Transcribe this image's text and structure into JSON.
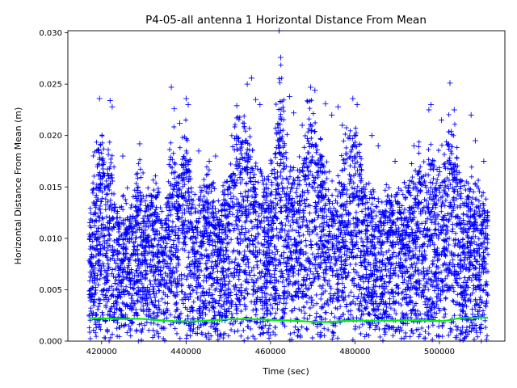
{
  "chart_data": {
    "type": "scatter",
    "title": "P4-05-all antenna 1 Horizontal Distance From Mean",
    "xlabel": "Time (sec)",
    "ylabel": "Horizontal Distance From Mean (m)",
    "xlim": [
      412000,
      515500
    ],
    "ylim": [
      0,
      0.0302
    ],
    "xticks": [
      {
        "value": 420000,
        "label": "420000"
      },
      {
        "value": 440000,
        "label": "440000"
      },
      {
        "value": 460000,
        "label": "460000"
      },
      {
        "value": 480000,
        "label": "480000"
      },
      {
        "value": 500000,
        "label": "500000"
      }
    ],
    "yticks": [
      {
        "value": 0,
        "label": "0.000"
      },
      {
        "value": 0.005,
        "label": "0.005"
      },
      {
        "value": 0.01,
        "label": "0.010"
      },
      {
        "value": 0.015,
        "label": "0.015"
      },
      {
        "value": 0.02,
        "label": "0.020"
      },
      {
        "value": 0.025,
        "label": "0.025"
      },
      {
        "value": 0.03,
        "label": "0.030"
      }
    ],
    "grid": false,
    "legend": "none",
    "x_range": [
      417000,
      511500
    ],
    "series": [
      {
        "marker": "+",
        "color": "#0000ff",
        "envelope": [
          [
            417000,
            0.0115
          ],
          [
            418000,
            0.0168
          ],
          [
            419000,
            0.0175
          ],
          [
            420000,
            0.0198
          ],
          [
            421000,
            0.0165
          ],
          [
            422000,
            0.0185
          ],
          [
            423000,
            0.0145
          ],
          [
            424000,
            0.0122
          ],
          [
            425000,
            0.0128
          ],
          [
            426000,
            0.0138
          ],
          [
            427000,
            0.0125
          ],
          [
            428000,
            0.0152
          ],
          [
            429000,
            0.0165
          ],
          [
            430000,
            0.014
          ],
          [
            431000,
            0.0135
          ],
          [
            432000,
            0.0145
          ],
          [
            433000,
            0.015
          ],
          [
            434000,
            0.013
          ],
          [
            435000,
            0.012
          ],
          [
            436000,
            0.0175
          ],
          [
            437000,
            0.0195
          ],
          [
            438000,
            0.015
          ],
          [
            439000,
            0.0182
          ],
          [
            440000,
            0.02
          ],
          [
            441000,
            0.0155
          ],
          [
            442000,
            0.0128
          ],
          [
            443000,
            0.014
          ],
          [
            444000,
            0.0135
          ],
          [
            445000,
            0.0155
          ],
          [
            446000,
            0.015
          ],
          [
            447000,
            0.013
          ],
          [
            448000,
            0.012
          ],
          [
            449000,
            0.0138
          ],
          [
            450000,
            0.016
          ],
          [
            451000,
            0.0185
          ],
          [
            452000,
            0.0205
          ],
          [
            453000,
            0.0215
          ],
          [
            454000,
            0.0222
          ],
          [
            455000,
            0.0195
          ],
          [
            456000,
            0.0165
          ],
          [
            457000,
            0.016
          ],
          [
            458000,
            0.0155
          ],
          [
            459000,
            0.015
          ],
          [
            460000,
            0.0165
          ],
          [
            461000,
            0.0195
          ],
          [
            462000,
            0.0245
          ],
          [
            463000,
            0.0235
          ],
          [
            464000,
            0.018
          ],
          [
            465000,
            0.016
          ],
          [
            466000,
            0.0165
          ],
          [
            467000,
            0.0175
          ],
          [
            468000,
            0.018
          ],
          [
            469000,
            0.0225
          ],
          [
            470000,
            0.0215
          ],
          [
            471000,
            0.019
          ],
          [
            472000,
            0.018
          ],
          [
            473000,
            0.017
          ],
          [
            474000,
            0.015
          ],
          [
            475000,
            0.014
          ],
          [
            476000,
            0.0155
          ],
          [
            477000,
            0.017
          ],
          [
            478000,
            0.0185
          ],
          [
            479000,
            0.0205
          ],
          [
            480000,
            0.021
          ],
          [
            481000,
            0.0185
          ],
          [
            482000,
            0.0155
          ],
          [
            483000,
            0.014
          ],
          [
            484000,
            0.0135
          ],
          [
            485000,
            0.013
          ],
          [
            486000,
            0.0125
          ],
          [
            487000,
            0.013
          ],
          [
            488000,
            0.015
          ],
          [
            489000,
            0.014
          ],
          [
            490000,
            0.0145
          ],
          [
            491000,
            0.0135
          ],
          [
            492000,
            0.015
          ],
          [
            493000,
            0.0155
          ],
          [
            494000,
            0.015
          ],
          [
            495000,
            0.0175
          ],
          [
            496000,
            0.0165
          ],
          [
            497000,
            0.016
          ],
          [
            498000,
            0.017
          ],
          [
            499000,
            0.0165
          ],
          [
            500000,
            0.017
          ],
          [
            501000,
            0.018
          ],
          [
            502000,
            0.02
          ],
          [
            503000,
            0.021
          ],
          [
            504000,
            0.018
          ],
          [
            505000,
            0.016
          ],
          [
            506000,
            0.014
          ],
          [
            507000,
            0.0145
          ],
          [
            508000,
            0.015
          ],
          [
            509000,
            0.014
          ],
          [
            510000,
            0.0135
          ],
          [
            511500,
            0.0125
          ]
        ],
        "outliers": [
          [
            419500,
            0.0236
          ],
          [
            422000,
            0.0234
          ],
          [
            422500,
            0.0228
          ],
          [
            425000,
            0.018
          ],
          [
            429000,
            0.0192
          ],
          [
            436500,
            0.0247
          ],
          [
            437200,
            0.0226
          ],
          [
            438500,
            0.0212
          ],
          [
            440000,
            0.0236
          ],
          [
            440500,
            0.023
          ],
          [
            443000,
            0.0185
          ],
          [
            445500,
            0.0175
          ],
          [
            447000,
            0.018
          ],
          [
            452000,
            0.0229
          ],
          [
            454500,
            0.025
          ],
          [
            455500,
            0.0256
          ],
          [
            456500,
            0.0235
          ],
          [
            457500,
            0.023
          ],
          [
            462000,
            0.0302
          ],
          [
            462400,
            0.0276
          ],
          [
            464500,
            0.0238
          ],
          [
            465500,
            0.0222
          ],
          [
            467500,
            0.021
          ],
          [
            469500,
            0.0247
          ],
          [
            470500,
            0.0244
          ],
          [
            473000,
            0.0231
          ],
          [
            474500,
            0.022
          ],
          [
            476000,
            0.0228
          ],
          [
            477000,
            0.021
          ],
          [
            479500,
            0.0236
          ],
          [
            480500,
            0.023
          ],
          [
            484000,
            0.02
          ],
          [
            485500,
            0.019
          ],
          [
            489500,
            0.0175
          ],
          [
            494000,
            0.019
          ],
          [
            497500,
            0.0225
          ],
          [
            498000,
            0.023
          ],
          [
            500500,
            0.0215
          ],
          [
            502500,
            0.0251
          ],
          [
            503500,
            0.0225
          ],
          [
            507500,
            0.022
          ],
          [
            508500,
            0.0195
          ],
          [
            510500,
            0.0175
          ]
        ]
      },
      {
        "marker": "line",
        "color": "#00ee00",
        "points": [
          [
            417000,
            0.00225
          ],
          [
            421000,
            0.0022
          ],
          [
            425000,
            0.00215
          ],
          [
            429000,
            0.00218
          ],
          [
            433000,
            0.00205
          ],
          [
            437000,
            0.00195
          ],
          [
            441000,
            0.0019
          ],
          [
            445000,
            0.002
          ],
          [
            449000,
            0.0021
          ],
          [
            453000,
            0.00215
          ],
          [
            457000,
            0.00212
          ],
          [
            461000,
            0.00205
          ],
          [
            465000,
            0.002
          ],
          [
            469000,
            0.0019
          ],
          [
            473000,
            0.00185
          ],
          [
            477000,
            0.00195
          ],
          [
            481000,
            0.002
          ],
          [
            485000,
            0.00198
          ],
          [
            489000,
            0.002
          ],
          [
            493000,
            0.00205
          ],
          [
            497000,
            0.002
          ],
          [
            501000,
            0.00195
          ],
          [
            505000,
            0.00225
          ],
          [
            509000,
            0.0023
          ],
          [
            511500,
            0.00228
          ]
        ]
      }
    ]
  }
}
